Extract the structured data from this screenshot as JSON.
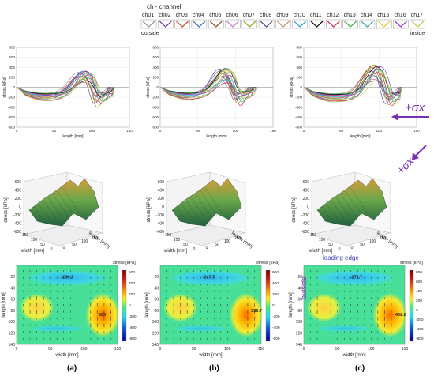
{
  "legend": {
    "title": "ch - channel",
    "outside_label": "outside",
    "inside_label": "inside",
    "channels": [
      {
        "name": "ch01",
        "color": "#9a9a9a"
      },
      {
        "name": "ch02",
        "color": "#7a3fa0"
      },
      {
        "name": "ch03",
        "color": "#c8502a"
      },
      {
        "name": "ch04",
        "color": "#4a6fb8"
      },
      {
        "name": "ch05",
        "color": "#8a5a20"
      },
      {
        "name": "ch06",
        "color": "#d07ac0"
      },
      {
        "name": "ch07",
        "color": "#a0a020"
      },
      {
        "name": "ch08",
        "color": "#4a4a90"
      },
      {
        "name": "ch09",
        "color": "#c89060"
      },
      {
        "name": "ch10",
        "color": "#28a8d8"
      },
      {
        "name": "ch11",
        "color": "#101010"
      },
      {
        "name": "ch12",
        "color": "#d03050"
      },
      {
        "name": "ch13",
        "color": "#40b040"
      },
      {
        "name": "ch14",
        "color": "#30b0a0"
      },
      {
        "name": "ch15",
        "color": "#e8d040"
      },
      {
        "name": "ch16",
        "color": "#9b3bd0"
      },
      {
        "name": "ch17",
        "color": "#b8d060"
      }
    ]
  },
  "annotations": {
    "sigma_label": "+σx",
    "leading_edge": "leading edge",
    "outside_rot": "outside"
  },
  "panel_labels": [
    "(a)",
    "(b)",
    "(c)"
  ],
  "chart_data": [
    {
      "type": "line",
      "panel": "a",
      "xlabel": "length [mm]",
      "ylabel": "stress [kPa]",
      "xlim": [
        0,
        150
      ],
      "ylim": [
        -800,
        800
      ],
      "xticks": [
        0,
        50,
        100,
        150
      ],
      "yticks": [
        -800,
        -600,
        -400,
        -200,
        0,
        200,
        400,
        600,
        800
      ],
      "peak_range": [
        80,
        330
      ],
      "trough_range": [
        -280,
        -120
      ],
      "peak_x": 90
    },
    {
      "type": "line",
      "panel": "b",
      "xlabel": "length [mm]",
      "ylabel": "stress [kPa]",
      "xlim": [
        0,
        150
      ],
      "ylim": [
        -800,
        800
      ],
      "xticks": [
        0,
        50,
        100,
        150
      ],
      "yticks": [
        -800,
        -600,
        -400,
        -200,
        0,
        200,
        400,
        600,
        800
      ],
      "peak_range": [
        80,
        380
      ],
      "trough_range": [
        -260,
        -110
      ],
      "peak_x": 85
    },
    {
      "type": "line",
      "panel": "c",
      "xlabel": "length [mm]",
      "ylabel": "stress [kPa]",
      "xlim": [
        0,
        150
      ],
      "ylim": [
        -800,
        800
      ],
      "xticks": [
        0,
        50,
        100,
        150
      ],
      "yticks": [
        -800,
        -600,
        -400,
        -200,
        0,
        200,
        400,
        600,
        800
      ],
      "peak_range": [
        100,
        450
      ],
      "trough_range": [
        -300,
        -130
      ],
      "peak_x": 95
    },
    {
      "type": "surface",
      "panel": "a",
      "zlabel": "stress [kPa]",
      "xlabel": "width [mm]",
      "ylabel": "length [mm]",
      "zticks": [
        600,
        400,
        200,
        0,
        -200,
        -400,
        -600
      ],
      "width_ticks": [
        0,
        50,
        100,
        150
      ],
      "length_ticks": [
        0,
        50,
        100,
        150
      ]
    },
    {
      "type": "surface",
      "panel": "b",
      "zlabel": "stress [kPa]",
      "xlabel": "width [mm]",
      "ylabel": "length [mm]",
      "zticks": [
        600,
        400,
        200,
        0,
        -200,
        -400,
        -600
      ],
      "width_ticks": [
        0,
        50,
        100,
        150
      ],
      "length_ticks": [
        0,
        50,
        100,
        150
      ]
    },
    {
      "type": "surface",
      "panel": "c",
      "zlabel": "stress [kPa]",
      "xlabel": "width [mm]",
      "ylabel": "length [mm]",
      "zticks": [
        600,
        400,
        200,
        0,
        -200,
        -400,
        -600
      ],
      "width_ticks": [
        0,
        50,
        100,
        150
      ],
      "length_ticks": [
        0,
        50,
        100,
        150
      ]
    },
    {
      "type": "heatmap",
      "panel": "a",
      "xlabel": "width [mm]",
      "ylabel": "length [mm]",
      "colorbar_label": "stress [kPa]",
      "xlim": [
        0,
        150
      ],
      "ylim": [
        0,
        140
      ],
      "xticks": [
        0,
        50,
        100,
        150
      ],
      "yticks": [
        20,
        40,
        60,
        80,
        100,
        120,
        140
      ],
      "colorbar_ticks": [
        600,
        400,
        200,
        0,
        -200,
        -400,
        -600
      ],
      "annotations": [
        {
          "text": "-236.3",
          "x": 75,
          "y": 20
        },
        {
          "text": "303",
          "x": 127,
          "y": 87
        }
      ]
    },
    {
      "type": "heatmap",
      "panel": "b",
      "xlabel": "width [mm]",
      "ylabel": "length [mm]",
      "colorbar_label": "stress [kPa]",
      "xlim": [
        0,
        150
      ],
      "ylim": [
        0,
        140
      ],
      "xticks": [
        0,
        50,
        100,
        150
      ],
      "yticks": [
        20,
        40,
        60,
        80,
        100,
        120,
        140
      ],
      "colorbar_ticks": [
        600,
        400,
        200,
        0,
        -200,
        -400,
        -600
      ],
      "annotations": [
        {
          "text": "-247.7",
          "x": 72,
          "y": 20
        },
        {
          "text": "359.7",
          "x": 143,
          "y": 80
        }
      ]
    },
    {
      "type": "heatmap",
      "panel": "c",
      "xlabel": "width [mm]",
      "ylabel": "length [mm]",
      "colorbar_label": "stress [kPa]",
      "xlim": [
        0,
        150
      ],
      "ylim": [
        0,
        140
      ],
      "xticks": [
        0,
        50,
        100,
        150
      ],
      "yticks": [
        20,
        40,
        60,
        80,
        100,
        120,
        140
      ],
      "colorbar_ticks": [
        800,
        600,
        400,
        200,
        0,
        -200,
        -400,
        -600
      ],
      "annotations": [
        {
          "text": "-271.7",
          "x": 78,
          "y": 20
        },
        {
          "text": "402.8",
          "x": 144,
          "y": 87
        }
      ]
    }
  ]
}
